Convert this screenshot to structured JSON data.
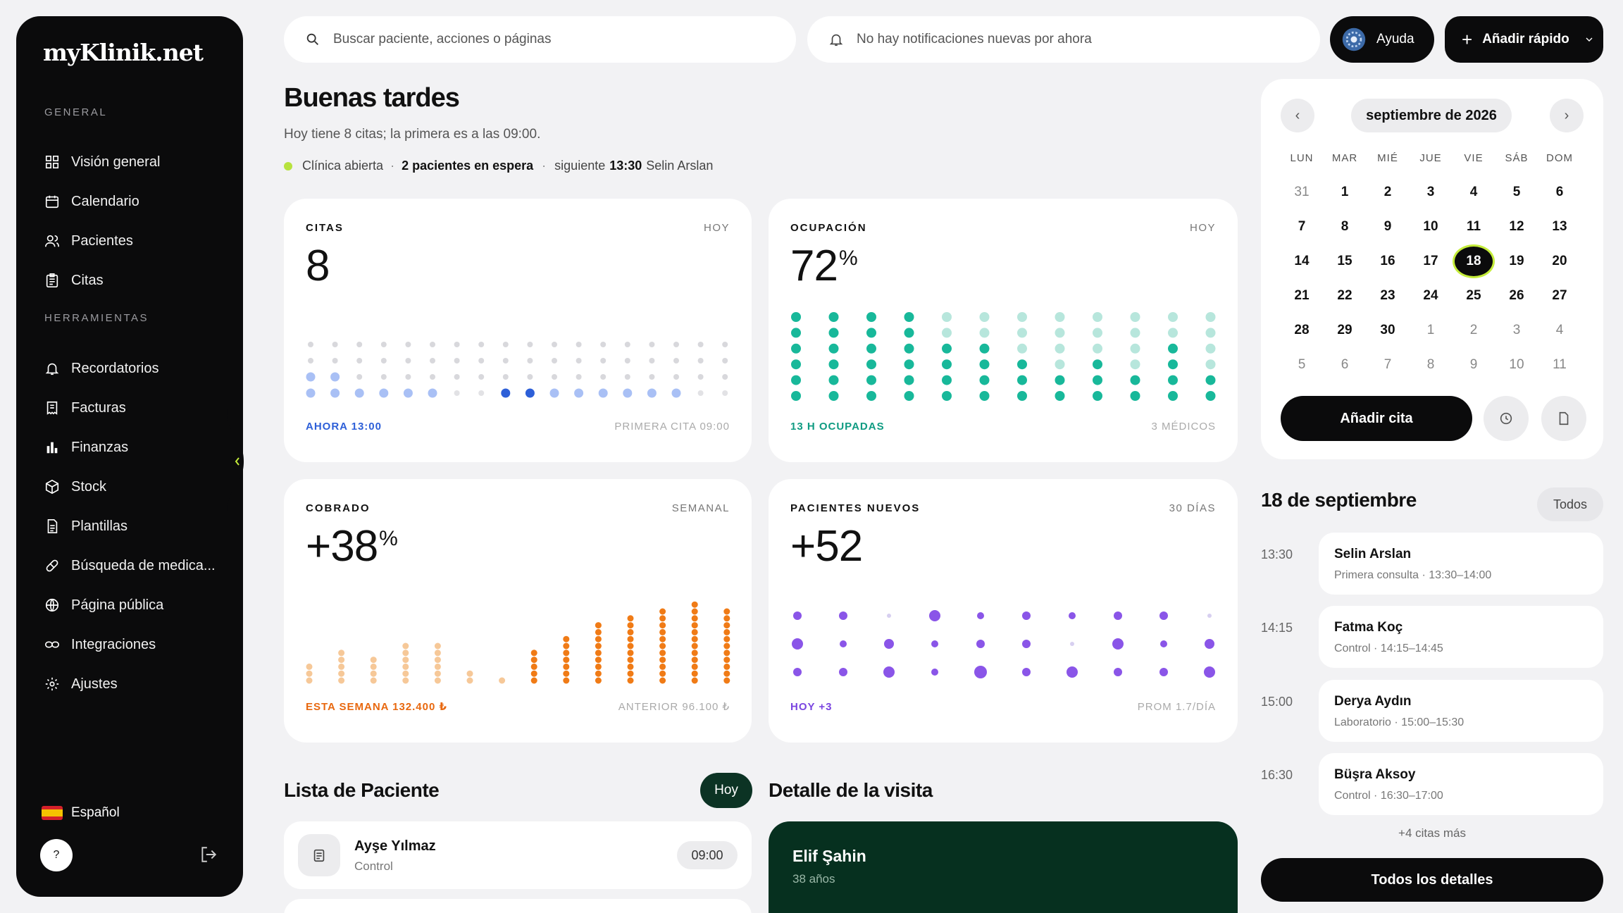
{
  "app": {
    "logo": "myKlinik.net"
  },
  "sidebar": {
    "general_label": "GENERAL",
    "tools_label": "HERRAMIENTAS",
    "items": [
      {
        "label": "Visión general",
        "icon": "grid-icon"
      },
      {
        "label": "Calendario",
        "icon": "calendar-icon"
      },
      {
        "label": "Pacientes",
        "icon": "users-icon"
      },
      {
        "label": "Citas",
        "icon": "clipboard-icon"
      }
    ],
    "tools": [
      {
        "label": "Recordatorios",
        "icon": "bell-icon"
      },
      {
        "label": "Facturas",
        "icon": "receipt-icon"
      },
      {
        "label": "Finanzas",
        "icon": "bar-chart-icon"
      },
      {
        "label": "Stock",
        "icon": "box-icon"
      },
      {
        "label": "Plantillas",
        "icon": "document-icon"
      },
      {
        "label": "Búsqueda de medica...",
        "icon": "pill-icon"
      },
      {
        "label": "Página pública",
        "icon": "globe-icon"
      },
      {
        "label": "Integraciones",
        "icon": "link-icon"
      },
      {
        "label": "Ajustes",
        "icon": "gear-icon"
      }
    ],
    "language": "Español",
    "help": "?"
  },
  "topbar": {
    "search_placeholder": "Buscar paciente, acciones o páginas",
    "notifications": "No hay notificaciones nuevas por ahora",
    "help": "Ayuda",
    "quick_add": "Añadir rápido"
  },
  "greeting": {
    "title": "Buenas tardes",
    "subtitle": "Hoy tiene 8 citas; la primera es a las 09:00.",
    "clinic_status": "Clínica abierta",
    "waiting": "2 pacientes en espera",
    "next_label": "siguiente",
    "next_time": "13:30",
    "next_patient": "Selin Arslan"
  },
  "cards": {
    "citas": {
      "title": "CITAS",
      "tag": "HOY",
      "value": "8",
      "foot_left": "AHORA 13:00",
      "foot_right": "PRIMERA CITA 09:00"
    },
    "ocupacion": {
      "title": "OCUPACIÓN",
      "tag": "HOY",
      "value": "72",
      "unit": "%",
      "foot_left": "13 H OCUPADAS",
      "foot_right": "3 MÉDICOS"
    },
    "cobrado": {
      "title": "COBRADO",
      "tag": "SEMANAL",
      "value": "+38",
      "unit": "%",
      "foot_left": "ESTA SEMANA 132.400 ₺",
      "foot_right": "ANTERIOR 96.100 ₺"
    },
    "nuevos": {
      "title": "PACIENTES NUEVOS",
      "tag": "30 DÍAS",
      "value": "+52",
      "foot_left": "HOY +3",
      "foot_right": "PROM 1.7/DÍA"
    }
  },
  "chart_data": [
    {
      "type": "dot-matrix",
      "series": "citas",
      "columns": 18,
      "booked_columns": [
        0,
        1,
        2,
        3,
        4,
        5,
        8,
        9,
        10,
        11,
        12,
        13,
        14,
        15
      ],
      "current_columns": [
        8,
        9
      ]
    },
    {
      "type": "dot-matrix",
      "series": "ocupacion",
      "columns": 12,
      "filled_levels": [
        6,
        6,
        6,
        6,
        4,
        4,
        3,
        2,
        3,
        2,
        4,
        2
      ]
    },
    {
      "type": "bar",
      "series": "cobrado",
      "values": [
        3,
        5,
        4,
        6,
        6,
        2,
        1,
        5,
        7,
        9,
        10,
        11,
        12,
        11,
        8
      ],
      "highlight_from": 7
    },
    {
      "type": "dot-matrix",
      "series": "nuevos",
      "columns": 10
    }
  ],
  "calendar": {
    "month": "septiembre de 2026",
    "dow": [
      "LUN",
      "MAR",
      "MIÉ",
      "JUE",
      "VIE",
      "SÁB",
      "DOM"
    ],
    "weeks": [
      [
        "31",
        "1",
        "2",
        "3",
        "4",
        "5",
        "6"
      ],
      [
        "7",
        "8",
        "9",
        "10",
        "11",
        "12",
        "13"
      ],
      [
        "14",
        "15",
        "16",
        "17",
        "18",
        "19",
        "20"
      ],
      [
        "21",
        "22",
        "23",
        "24",
        "25",
        "26",
        "27"
      ],
      [
        "28",
        "29",
        "30",
        "1",
        "2",
        "3",
        "4"
      ],
      [
        "5",
        "6",
        "7",
        "8",
        "9",
        "10",
        "11"
      ]
    ],
    "selected": "18",
    "add_button": "Añadir cita"
  },
  "agenda": {
    "title": "18 de septiembre",
    "filter": "Todos",
    "items": [
      {
        "time": "13:30",
        "name": "Selin Arslan",
        "desc": "Primera consulta · 13:30–14:00"
      },
      {
        "time": "14:15",
        "name": "Fatma Koç",
        "desc": "Control · 14:15–14:45"
      },
      {
        "time": "15:00",
        "name": "Derya Aydın",
        "desc": "Laboratorio · 15:00–15:30"
      },
      {
        "time": "16:30",
        "name": "Büşra Aksoy",
        "desc": "Control · 16:30–17:00"
      }
    ],
    "more": "+4 citas más",
    "all_details": "Todos los detalles"
  },
  "patient_list": {
    "title": "Lista de Paciente",
    "filter": "Hoy",
    "items": [
      {
        "name": "Ayşe Yılmaz",
        "type": "Control",
        "time": "09:00"
      }
    ]
  },
  "visit": {
    "title": "Detalle de la visita",
    "name": "Elif Şahin",
    "age": "38 años"
  }
}
